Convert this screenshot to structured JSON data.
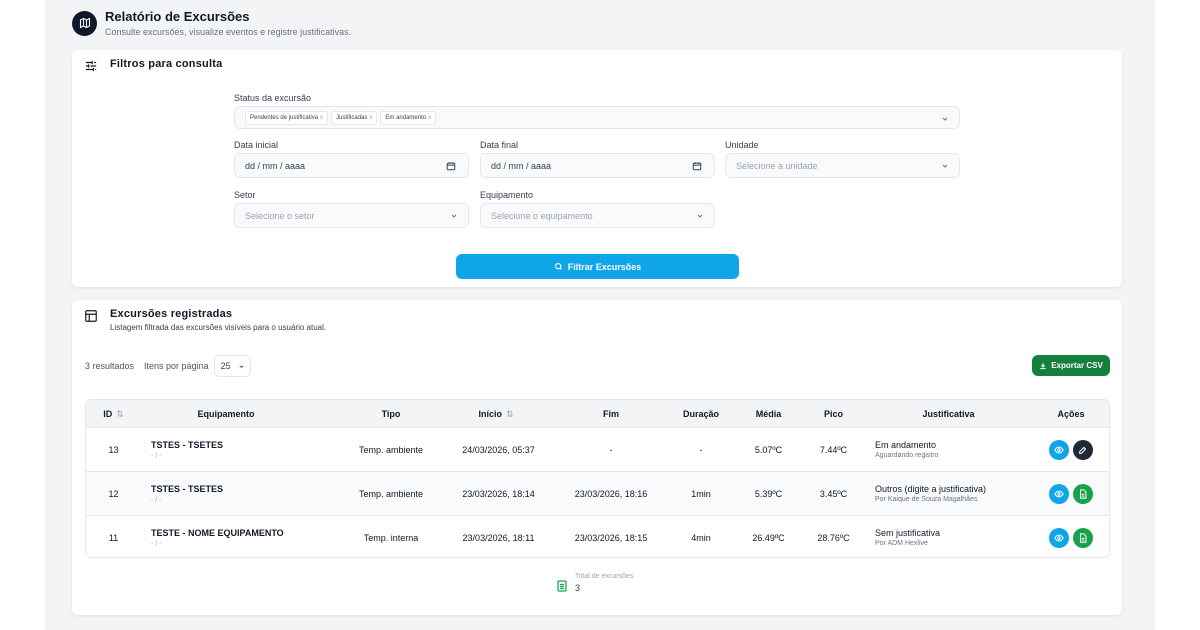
{
  "header": {
    "title": "Relatório de Excursões",
    "subtitle": "Consulte excursões, visualize eventos e registre justificativas."
  },
  "filters": {
    "title": "Filtros para consulta",
    "status_label": "Status da excursão",
    "status_chips": [
      "Pendentes de justificativa",
      "Justificadas",
      "Em andamento"
    ],
    "chip_remove": "x",
    "date_start_label": "Data inicial",
    "date_start_value": "dd / mm / aaaa",
    "date_end_label": "Data final",
    "date_end_value": "dd / mm / aaaa",
    "unit_label": "Unidade",
    "unit_placeholder": "Selecione a unidade",
    "sector_label": "Setor",
    "sector_placeholder": "Selecione o setor",
    "equipment_label": "Equipamento",
    "equipment_placeholder": "Selecione o equipamento",
    "filter_button": "Filtrar Excursões"
  },
  "table_card": {
    "title": "Excursões registradas",
    "description": "Listagem filtrada das excursões visíveis para o usuário atual.",
    "results_count": "3 resultados",
    "per_page_label": "Itens por página",
    "per_page_value": "25",
    "export_button": "Exportar CSV",
    "columns": [
      "ID",
      "Equipamento",
      "Tipo",
      "Início",
      "Fim",
      "Duração",
      "Média",
      "Pico",
      "Justificativa",
      "Ações"
    ],
    "sort_glyph": "⇅",
    "rows": [
      {
        "id": "13",
        "equipment": "TSTES - TSETES",
        "equipment_sub": "- / -",
        "type": "Temp. ambiente",
        "start": "24/03/2026, 05:37",
        "end": "-",
        "duration": "-",
        "avg": "5.07ºC",
        "peak": "7.44ºC",
        "justification": "Em andamento",
        "justification_sub": "Aguardando registro",
        "second_action": "edit"
      },
      {
        "id": "12",
        "equipment": "TSTES - TSETES",
        "equipment_sub": "- / -",
        "type": "Temp. ambiente",
        "start": "23/03/2026, 18:14",
        "end": "23/03/2026, 18:16",
        "duration": "1min",
        "avg": "5.39ºC",
        "peak": "3.45ºC",
        "justification": "Outros (digite a justificativa)",
        "justification_sub": "Por Kaique de Souza Magalhães",
        "second_action": "document"
      },
      {
        "id": "11",
        "equipment": "TESTE - NOME EQUIPAMENTO",
        "equipment_sub": "- / -",
        "type": "Temp. interna",
        "start": "23/03/2026, 18:11",
        "end": "23/03/2026, 18:15",
        "duration": "4min",
        "avg": "26.49ºC",
        "peak": "28.76ºC",
        "justification": "Sem justificativa",
        "justification_sub": "Por ADM Hexlive",
        "second_action": "document"
      }
    ],
    "total_label": "Total de excursões",
    "total_value": "3"
  },
  "colors": {
    "primary": "#0ea5e9",
    "success": "#15803d",
    "dark": "#0f172a"
  }
}
